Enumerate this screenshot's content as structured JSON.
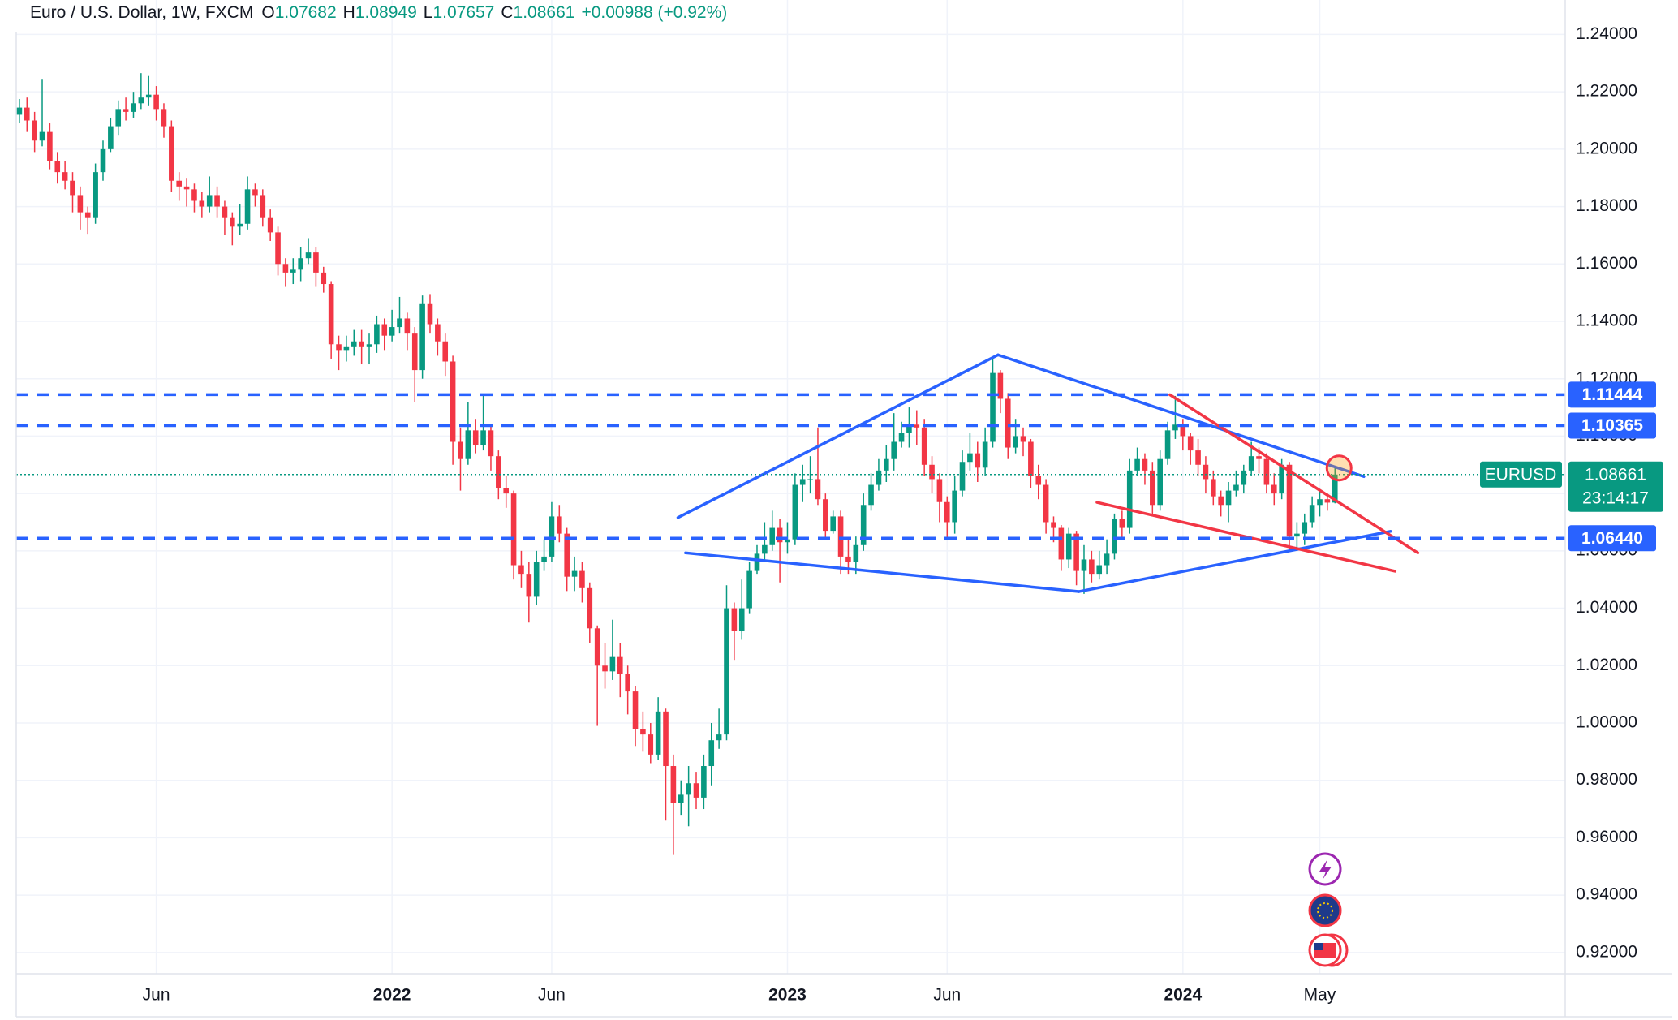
{
  "header": {
    "symbol": "Euro / U.S. Dollar, 1W, FXCM",
    "ohlc": [
      [
        "O",
        "1.07682"
      ],
      [
        "H",
        "1.08949"
      ],
      [
        "L",
        "1.07657"
      ],
      [
        "C",
        "1.08661"
      ]
    ],
    "change": "+0.00988 (+0.92%)"
  },
  "chart_data": {
    "type": "candlestick",
    "up_color": "#089981",
    "down_color": "#f23645",
    "grid": true,
    "ylim": [
      0.9126,
      1.252
    ],
    "yticks": [
      {
        "value": 0.92,
        "label": "0.92000"
      },
      {
        "value": 0.94,
        "label": "0.94000"
      },
      {
        "value": 0.96,
        "label": "0.96000"
      },
      {
        "value": 0.98,
        "label": "0.98000"
      },
      {
        "value": 1.0,
        "label": "1.00000"
      },
      {
        "value": 1.02,
        "label": "1.02000"
      },
      {
        "value": 1.04,
        "label": "1.04000"
      },
      {
        "value": 1.06,
        "label": "1.06000"
      },
      {
        "value": 1.08,
        "label": "1.08000"
      },
      {
        "value": 1.1,
        "label": "1.10000"
      },
      {
        "value": 1.12,
        "label": "1.12000"
      },
      {
        "value": 1.14,
        "label": "1.14000"
      },
      {
        "value": 1.16,
        "label": "1.16000"
      },
      {
        "value": 1.18,
        "label": "1.18000"
      },
      {
        "value": 1.2,
        "label": "1.20000"
      },
      {
        "value": 1.22,
        "label": "1.22000"
      },
      {
        "value": 1.24,
        "label": "1.24000"
      }
    ],
    "categories": [
      null,
      null,
      null,
      null,
      null,
      null,
      null,
      null,
      null,
      null,
      null,
      null,
      null,
      null,
      null,
      null,
      null,
      null,
      "Jun",
      null,
      null,
      null,
      null,
      null,
      null,
      null,
      null,
      null,
      null,
      null,
      null,
      null,
      null,
      null,
      null,
      null,
      null,
      null,
      null,
      null,
      null,
      null,
      null,
      null,
      null,
      null,
      null,
      null,
      null,
      "2022",
      null,
      null,
      null,
      null,
      null,
      null,
      null,
      null,
      null,
      null,
      null,
      null,
      null,
      null,
      null,
      null,
      null,
      null,
      null,
      null,
      "Jun",
      null,
      null,
      null,
      null,
      null,
      null,
      null,
      null,
      null,
      null,
      null,
      null,
      null,
      null,
      null,
      null,
      null,
      null,
      null,
      null,
      null,
      null,
      null,
      null,
      null,
      null,
      null,
      null,
      null,
      null,
      "2023",
      null,
      null,
      null,
      null,
      null,
      null,
      null,
      null,
      null,
      null,
      null,
      null,
      null,
      null,
      null,
      null,
      null,
      null,
      null,
      null,
      "Jun",
      null,
      null,
      null,
      null,
      null,
      null,
      null,
      null,
      null,
      null,
      null,
      null,
      null,
      null,
      null,
      null,
      null,
      null,
      null,
      null,
      null,
      null,
      null,
      null,
      null,
      null,
      null,
      null,
      null,
      null,
      "2024",
      null,
      null,
      null,
      null,
      null,
      null,
      null,
      null,
      null,
      null,
      null,
      null,
      null,
      null,
      null,
      null,
      null,
      "May",
      null,
      null
    ],
    "bold_categories": [
      "2022",
      "2023",
      "2024"
    ],
    "ohlc": [
      [
        1.212,
        1.2175,
        1.209,
        1.2145
      ],
      [
        1.2145,
        1.218,
        1.206,
        1.21
      ],
      [
        1.21,
        1.213,
        1.199,
        1.203
      ],
      [
        1.203,
        1.2245,
        1.201,
        1.206
      ],
      [
        1.206,
        1.209,
        1.193,
        1.196
      ],
      [
        1.196,
        1.199,
        1.188,
        1.192
      ],
      [
        1.192,
        1.196,
        1.186,
        1.189
      ],
      [
        1.189,
        1.192,
        1.178,
        1.184
      ],
      [
        1.184,
        1.187,
        1.172,
        1.178
      ],
      [
        1.178,
        1.18,
        1.1705,
        1.176
      ],
      [
        1.176,
        1.195,
        1.174,
        1.192
      ],
      [
        1.192,
        1.203,
        1.189,
        1.2
      ],
      [
        1.2,
        1.211,
        1.199,
        1.208
      ],
      [
        1.208,
        1.217,
        1.205,
        1.214
      ],
      [
        1.214,
        1.218,
        1.21,
        1.213
      ],
      [
        1.213,
        1.22,
        1.211,
        1.216
      ],
      [
        1.216,
        1.2265,
        1.214,
        1.218
      ],
      [
        1.218,
        1.2255,
        1.215,
        1.219
      ],
      [
        1.219,
        1.222,
        1.21,
        1.214
      ],
      [
        1.214,
        1.216,
        1.204,
        1.208
      ],
      [
        1.208,
        1.21,
        1.185,
        1.189
      ],
      [
        1.189,
        1.192,
        1.182,
        1.187
      ],
      [
        1.187,
        1.19,
        1.18,
        1.186
      ],
      [
        1.186,
        1.188,
        1.178,
        1.182
      ],
      [
        1.182,
        1.185,
        1.176,
        1.18
      ],
      [
        1.18,
        1.1905,
        1.178,
        1.184
      ],
      [
        1.184,
        1.187,
        1.176,
        1.18
      ],
      [
        1.18,
        1.182,
        1.17,
        1.176
      ],
      [
        1.176,
        1.178,
        1.1665,
        1.173
      ],
      [
        1.173,
        1.181,
        1.17,
        1.174
      ],
      [
        1.174,
        1.1905,
        1.172,
        1.186
      ],
      [
        1.186,
        1.188,
        1.18,
        1.184
      ],
      [
        1.184,
        1.186,
        1.173,
        1.176
      ],
      [
        1.176,
        1.179,
        1.168,
        1.171
      ],
      [
        1.171,
        1.173,
        1.156,
        1.16
      ],
      [
        1.16,
        1.162,
        1.152,
        1.157
      ],
      [
        1.157,
        1.162,
        1.153,
        1.158
      ],
      [
        1.158,
        1.166,
        1.154,
        1.162
      ],
      [
        1.162,
        1.169,
        1.16,
        1.164
      ],
      [
        1.164,
        1.166,
        1.152,
        1.157
      ],
      [
        1.157,
        1.159,
        1.15,
        1.153
      ],
      [
        1.153,
        1.154,
        1.127,
        1.132
      ],
      [
        1.132,
        1.135,
        1.123,
        1.13
      ],
      [
        1.13,
        1.135,
        1.126,
        1.131
      ],
      [
        1.131,
        1.137,
        1.128,
        1.133
      ],
      [
        1.133,
        1.137,
        1.125,
        1.131
      ],
      [
        1.131,
        1.136,
        1.125,
        1.132
      ],
      [
        1.132,
        1.142,
        1.129,
        1.139
      ],
      [
        1.139,
        1.141,
        1.13,
        1.135
      ],
      [
        1.135,
        1.144,
        1.133,
        1.138
      ],
      [
        1.138,
        1.1485,
        1.136,
        1.141
      ],
      [
        1.141,
        1.143,
        1.13,
        1.136
      ],
      [
        1.136,
        1.138,
        1.112,
        1.123
      ],
      [
        1.123,
        1.149,
        1.12,
        1.146
      ],
      [
        1.146,
        1.1495,
        1.136,
        1.139
      ],
      [
        1.139,
        1.141,
        1.128,
        1.133
      ],
      [
        1.133,
        1.136,
        1.121,
        1.126
      ],
      [
        1.126,
        1.128,
        1.09,
        1.098
      ],
      [
        1.098,
        1.103,
        1.081,
        1.092
      ],
      [
        1.092,
        1.112,
        1.09,
        1.102
      ],
      [
        1.102,
        1.106,
        1.094,
        1.097
      ],
      [
        1.097,
        1.114,
        1.095,
        1.102
      ],
      [
        1.102,
        1.104,
        1.088,
        1.093
      ],
      [
        1.093,
        1.095,
        1.078,
        1.082
      ],
      [
        1.082,
        1.086,
        1.075,
        1.08
      ],
      [
        1.08,
        1.081,
        1.05,
        1.055
      ],
      [
        1.055,
        1.06,
        1.047,
        1.052
      ],
      [
        1.052,
        1.056,
        1.035,
        1.044
      ],
      [
        1.044,
        1.06,
        1.041,
        1.056
      ],
      [
        1.056,
        1.064,
        1.053,
        1.058
      ],
      [
        1.058,
        1.077,
        1.056,
        1.072
      ],
      [
        1.072,
        1.076,
        1.063,
        1.066
      ],
      [
        1.066,
        1.068,
        1.046,
        1.051
      ],
      [
        1.051,
        1.058,
        1.046,
        1.053
      ],
      [
        1.053,
        1.056,
        1.042,
        1.047
      ],
      [
        1.047,
        1.049,
        1.028,
        1.033
      ],
      [
        1.033,
        1.034,
        0.999,
        1.02
      ],
      [
        1.02,
        1.028,
        1.012,
        1.018
      ],
      [
        1.018,
        1.036,
        1.015,
        1.023
      ],
      [
        1.023,
        1.028,
        1.009,
        1.017
      ],
      [
        1.017,
        1.02,
        1.003,
        1.011
      ],
      [
        1.011,
        1.013,
        0.992,
        0.998
      ],
      [
        0.998,
        1.004,
        0.99,
        0.996
      ],
      [
        0.996,
        1.0,
        0.986,
        0.989
      ],
      [
        0.989,
        1.009,
        0.987,
        1.004
      ],
      [
        1.004,
        1.005,
        0.966,
        0.985
      ],
      [
        0.985,
        0.989,
        0.954,
        0.972
      ],
      [
        0.972,
        0.98,
        0.968,
        0.975
      ],
      [
        0.975,
        0.985,
        0.964,
        0.979
      ],
      [
        0.979,
        0.983,
        0.97,
        0.974
      ],
      [
        0.974,
        0.989,
        0.97,
        0.985
      ],
      [
        0.985,
        1.0,
        0.978,
        0.994
      ],
      [
        0.994,
        1.005,
        0.991,
        0.996
      ],
      [
        0.996,
        1.048,
        0.994,
        1.04
      ],
      [
        1.04,
        1.042,
        1.022,
        1.032
      ],
      [
        1.032,
        1.05,
        1.029,
        1.04
      ],
      [
        1.04,
        1.056,
        1.038,
        1.053
      ],
      [
        1.053,
        1.062,
        1.052,
        1.059
      ],
      [
        1.059,
        1.07,
        1.056,
        1.062
      ],
      [
        1.062,
        1.074,
        1.06,
        1.068
      ],
      [
        1.068,
        1.071,
        1.049,
        1.063
      ],
      [
        1.063,
        1.07,
        1.059,
        1.064
      ],
      [
        1.064,
        1.087,
        1.062,
        1.083
      ],
      [
        1.083,
        1.09,
        1.077,
        1.085
      ],
      [
        1.085,
        1.093,
        1.08,
        1.085
      ],
      [
        1.085,
        1.103,
        1.076,
        1.078
      ],
      [
        1.078,
        1.08,
        1.064,
        1.067
      ],
      [
        1.067,
        1.074,
        1.066,
        1.072
      ],
      [
        1.072,
        1.074,
        1.052,
        1.058
      ],
      [
        1.058,
        1.064,
        1.052,
        1.056
      ],
      [
        1.056,
        1.065,
        1.052,
        1.062
      ],
      [
        1.062,
        1.08,
        1.06,
        1.076
      ],
      [
        1.076,
        1.087,
        1.074,
        1.083
      ],
      [
        1.083,
        1.092,
        1.081,
        1.088
      ],
      [
        1.088,
        1.097,
        1.084,
        1.092
      ],
      [
        1.092,
        1.108,
        1.088,
        1.098
      ],
      [
        1.098,
        1.105,
        1.096,
        1.101
      ],
      [
        1.101,
        1.11,
        1.096,
        1.104
      ],
      [
        1.104,
        1.109,
        1.097,
        1.103
      ],
      [
        1.103,
        1.106,
        1.086,
        1.09
      ],
      [
        1.09,
        1.093,
        1.08,
        1.085
      ],
      [
        1.085,
        1.087,
        1.07,
        1.077
      ],
      [
        1.077,
        1.079,
        1.064,
        1.07
      ],
      [
        1.07,
        1.086,
        1.066,
        1.081
      ],
      [
        1.081,
        1.095,
        1.079,
        1.091
      ],
      [
        1.091,
        1.101,
        1.088,
        1.094
      ],
      [
        1.094,
        1.098,
        1.084,
        1.089
      ],
      [
        1.089,
        1.103,
        1.086,
        1.098
      ],
      [
        1.098,
        1.1275,
        1.096,
        1.122
      ],
      [
        1.122,
        1.123,
        1.108,
        1.113
      ],
      [
        1.113,
        1.115,
        1.092,
        1.096
      ],
      [
        1.096,
        1.106,
        1.094,
        1.1
      ],
      [
        1.1,
        1.103,
        1.093,
        1.098
      ],
      [
        1.098,
        1.099,
        1.082,
        1.086
      ],
      [
        1.086,
        1.09,
        1.078,
        1.083
      ],
      [
        1.083,
        1.085,
        1.066,
        1.07
      ],
      [
        1.07,
        1.072,
        1.063,
        1.068
      ],
      [
        1.068,
        1.069,
        1.053,
        1.057
      ],
      [
        1.057,
        1.068,
        1.054,
        1.066
      ],
      [
        1.066,
        1.067,
        1.048,
        1.053
      ],
      [
        1.053,
        1.062,
        1.045,
        1.057
      ],
      [
        1.057,
        1.06,
        1.049,
        1.052
      ],
      [
        1.052,
        1.06,
        1.05,
        1.055
      ],
      [
        1.055,
        1.064,
        1.052,
        1.059
      ],
      [
        1.059,
        1.073,
        1.057,
        1.071
      ],
      [
        1.071,
        1.074,
        1.064,
        1.068
      ],
      [
        1.068,
        1.092,
        1.066,
        1.088
      ],
      [
        1.088,
        1.096,
        1.086,
        1.092
      ],
      [
        1.092,
        1.094,
        1.083,
        1.088
      ],
      [
        1.088,
        1.091,
        1.072,
        1.076
      ],
      [
        1.076,
        1.095,
        1.074,
        1.092
      ],
      [
        1.092,
        1.105,
        1.09,
        1.102
      ],
      [
        1.102,
        1.114,
        1.099,
        1.104
      ],
      [
        1.104,
        1.106,
        1.095,
        1.1
      ],
      [
        1.1,
        1.101,
        1.09,
        1.095
      ],
      [
        1.095,
        1.099,
        1.086,
        1.09
      ],
      [
        1.09,
        1.093,
        1.08,
        1.085
      ],
      [
        1.085,
        1.088,
        1.076,
        1.079
      ],
      [
        1.079,
        1.081,
        1.072,
        1.076
      ],
      [
        1.076,
        1.084,
        1.07,
        1.081
      ],
      [
        1.081,
        1.088,
        1.079,
        1.083
      ],
      [
        1.083,
        1.09,
        1.08,
        1.088
      ],
      [
        1.088,
        1.098,
        1.086,
        1.093
      ],
      [
        1.093,
        1.096,
        1.087,
        1.092
      ],
      [
        1.092,
        1.094,
        1.08,
        1.083
      ],
      [
        1.083,
        1.087,
        1.076,
        1.08
      ],
      [
        1.08,
        1.092,
        1.078,
        1.09
      ],
      [
        1.09,
        1.091,
        1.06,
        1.065
      ],
      [
        1.065,
        1.07,
        1.06,
        1.066
      ],
      [
        1.066,
        1.073,
        1.062,
        1.07
      ],
      [
        1.07,
        1.079,
        1.068,
        1.076
      ],
      [
        1.076,
        1.081,
        1.072,
        1.078
      ],
      [
        1.078,
        1.08,
        1.074,
        1.0768
      ],
      [
        1.07682,
        1.08949,
        1.07657,
        1.08661
      ]
    ],
    "levels": [
      {
        "value": 1.11444,
        "label": "1.11444",
        "color": "#2962ff"
      },
      {
        "value": 1.10365,
        "label": "1.10365",
        "color": "#2962ff"
      },
      {
        "value": 1.0644,
        "label": "1.06440",
        "color": "#2962ff"
      }
    ],
    "last_price": {
      "name": "EURUSD",
      "value": 1.08661,
      "label": "1.08661",
      "countdown": "23:14:17",
      "color": "#089981"
    },
    "trendlines": [
      {
        "color": "#2962ff",
        "points": [
          [
            86.6,
            1.0716
          ],
          [
            128.7,
            1.1283
          ]
        ]
      },
      {
        "color": "#2962ff",
        "points": [
          [
            128.7,
            1.1283
          ],
          [
            176.8,
            1.0859
          ]
        ]
      },
      {
        "color": "#2962ff",
        "points": [
          [
            87.6,
            1.0593
          ],
          [
            139.3,
            1.0458
          ]
        ]
      },
      {
        "color": "#2962ff",
        "points": [
          [
            139.3,
            1.0458
          ],
          [
            180.3,
            1.0668
          ]
        ]
      },
      {
        "color": "#f23645",
        "points": [
          [
            151.3,
            1.1144
          ],
          [
            183.9,
            1.0593
          ]
        ]
      },
      {
        "color": "#f23645",
        "points": [
          [
            141.7,
            1.0769
          ],
          [
            180.9,
            1.0529
          ]
        ]
      }
    ]
  }
}
